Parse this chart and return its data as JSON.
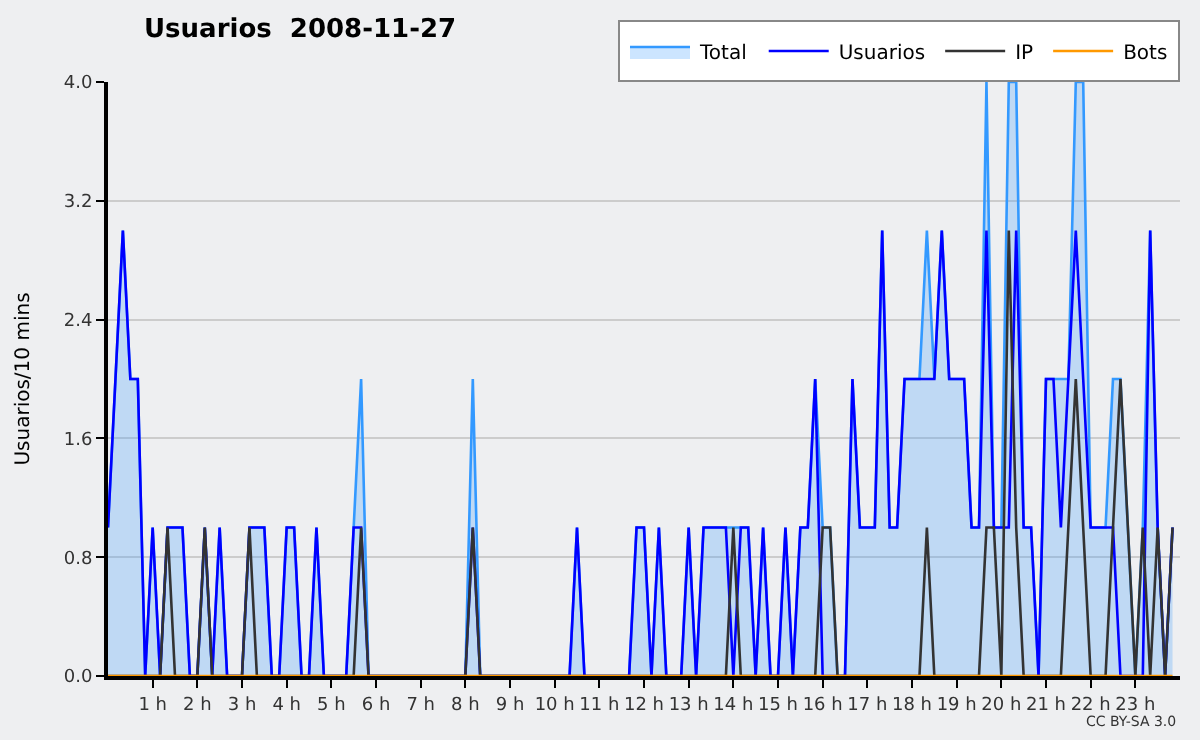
{
  "chart_data": {
    "type": "line",
    "title": "Usuarios  2008-11-27",
    "ylabel": "Usuarios/10 mins",
    "x": [
      0,
      0.167,
      0.333,
      0.5,
      0.667,
      0.833,
      1,
      1.167,
      1.333,
      1.5,
      1.667,
      1.833,
      2,
      2.167,
      2.333,
      2.5,
      2.667,
      2.833,
      3,
      3.167,
      3.333,
      3.5,
      3.667,
      3.833,
      4,
      4.167,
      4.333,
      4.5,
      4.667,
      4.833,
      5,
      5.167,
      5.333,
      5.5,
      5.667,
      5.833,
      6,
      6.167,
      6.333,
      6.5,
      6.667,
      6.833,
      7,
      7.167,
      7.333,
      7.5,
      7.667,
      7.833,
      8,
      8.167,
      8.333,
      8.5,
      8.667,
      8.833,
      9,
      9.167,
      9.333,
      9.5,
      9.667,
      9.833,
      10,
      10.167,
      10.333,
      10.5,
      10.667,
      10.833,
      11,
      11.167,
      11.333,
      11.5,
      11.667,
      11.833,
      12,
      12.167,
      12.333,
      12.5,
      12.667,
      12.833,
      13,
      13.167,
      13.333,
      13.5,
      13.667,
      13.833,
      14,
      14.167,
      14.333,
      14.5,
      14.667,
      14.833,
      15,
      15.167,
      15.333,
      15.5,
      15.667,
      15.833,
      16,
      16.167,
      16.333,
      16.5,
      16.667,
      16.833,
      17,
      17.167,
      17.333,
      17.5,
      17.667,
      17.833,
      18,
      18.167,
      18.333,
      18.5,
      18.667,
      18.833,
      19,
      19.167,
      19.333,
      19.5,
      19.667,
      19.833,
      20,
      20.167,
      20.333,
      20.5,
      20.667,
      20.833,
      21,
      21.167,
      21.333,
      21.5,
      21.667,
      21.833,
      22,
      22.167,
      22.333,
      22.5,
      22.667,
      22.833,
      23,
      23.167,
      23.333,
      23.5,
      23.667,
      23.833
    ],
    "series": [
      {
        "name": "Total",
        "type": "area",
        "color": "#3399ff",
        "values": [
          1,
          2,
          3,
          2,
          2,
          0,
          1,
          0,
          1,
          1,
          1,
          0,
          0,
          1,
          0,
          1,
          0,
          0,
          0,
          1,
          1,
          1,
          0,
          0,
          1,
          1,
          0,
          0,
          1,
          0,
          0,
          0,
          0,
          1,
          2,
          0,
          0,
          0,
          0,
          0,
          0,
          0,
          0,
          0,
          0,
          0,
          0,
          0,
          0,
          2,
          0,
          0,
          0,
          0,
          0,
          0,
          0,
          0,
          0,
          0,
          0,
          0,
          0,
          1,
          0,
          0,
          0,
          0,
          0,
          0,
          0,
          1,
          1,
          0,
          1,
          0,
          0,
          0,
          1,
          0,
          1,
          1,
          1,
          1,
          1,
          1,
          1,
          0,
          1,
          0,
          0,
          1,
          0,
          1,
          1,
          2,
          1,
          1,
          0,
          0,
          2,
          1,
          1,
          1,
          3,
          1,
          1,
          2,
          2,
          2,
          3,
          2,
          3,
          2,
          2,
          2,
          1,
          1,
          4,
          1,
          1,
          4,
          4,
          1,
          1,
          0,
          2,
          2,
          2,
          2,
          4,
          4,
          1,
          1,
          1,
          2,
          2,
          1,
          0,
          1,
          3,
          1,
          0,
          1
        ]
      },
      {
        "name": "Usuarios",
        "color": "#0000ff",
        "values": [
          1,
          2,
          3,
          2,
          2,
          0,
          1,
          0,
          1,
          1,
          1,
          0,
          0,
          1,
          0,
          1,
          0,
          0,
          0,
          1,
          1,
          1,
          0,
          0,
          1,
          1,
          0,
          0,
          1,
          0,
          0,
          0,
          0,
          1,
          1,
          0,
          0,
          0,
          0,
          0,
          0,
          0,
          0,
          0,
          0,
          0,
          0,
          0,
          0,
          1,
          0,
          0,
          0,
          0,
          0,
          0,
          0,
          0,
          0,
          0,
          0,
          0,
          0,
          1,
          0,
          0,
          0,
          0,
          0,
          0,
          0,
          1,
          1,
          0,
          1,
          0,
          0,
          0,
          1,
          0,
          1,
          1,
          1,
          1,
          0,
          1,
          1,
          0,
          1,
          0,
          0,
          1,
          0,
          1,
          1,
          2,
          0,
          0,
          0,
          0,
          2,
          1,
          1,
          1,
          3,
          1,
          1,
          2,
          2,
          2,
          2,
          2,
          3,
          2,
          2,
          2,
          1,
          1,
          3,
          1,
          1,
          1,
          3,
          1,
          1,
          0,
          2,
          2,
          1,
          2,
          3,
          2,
          1,
          1,
          1,
          1,
          0,
          0,
          0,
          0,
          3,
          1,
          0,
          1
        ]
      },
      {
        "name": "IP",
        "color": "#333333",
        "values": [
          0,
          0,
          0,
          0,
          0,
          0,
          0,
          0,
          1,
          0,
          0,
          0,
          0,
          1,
          0,
          0,
          0,
          0,
          0,
          1,
          0,
          0,
          0,
          0,
          0,
          0,
          0,
          0,
          0,
          0,
          0,
          0,
          0,
          0,
          1,
          0,
          0,
          0,
          0,
          0,
          0,
          0,
          0,
          0,
          0,
          0,
          0,
          0,
          0,
          1,
          0,
          0,
          0,
          0,
          0,
          0,
          0,
          0,
          0,
          0,
          0,
          0,
          0,
          0,
          0,
          0,
          0,
          0,
          0,
          0,
          0,
          0,
          0,
          0,
          0,
          0,
          0,
          0,
          0,
          0,
          0,
          0,
          0,
          0,
          1,
          0,
          0,
          0,
          0,
          0,
          0,
          0,
          0,
          0,
          0,
          0,
          1,
          1,
          0,
          0,
          0,
          0,
          0,
          0,
          0,
          0,
          0,
          0,
          0,
          0,
          1,
          0,
          0,
          0,
          0,
          0,
          0,
          0,
          1,
          1,
          0,
          3,
          1,
          0,
          0,
          0,
          0,
          0,
          0,
          1,
          2,
          1,
          0,
          0,
          0,
          1,
          2,
          1,
          0,
          1,
          0,
          1,
          0,
          1
        ]
      },
      {
        "name": "Bots",
        "color": "#ff9900",
        "values": [
          0,
          0,
          0,
          0,
          0,
          0,
          0,
          0,
          0,
          0,
          0,
          0,
          0,
          0,
          0,
          0,
          0,
          0,
          0,
          0,
          0,
          0,
          0,
          0,
          0,
          0,
          0,
          0,
          0,
          0,
          0,
          0,
          0,
          0,
          0,
          0,
          0,
          0,
          0,
          0,
          0,
          0,
          0,
          0,
          0,
          0,
          0,
          0,
          0,
          0,
          0,
          0,
          0,
          0,
          0,
          0,
          0,
          0,
          0,
          0,
          0,
          0,
          0,
          0,
          0,
          0,
          0,
          0,
          0,
          0,
          0,
          0,
          0,
          0,
          0,
          0,
          0,
          0,
          0,
          0,
          0,
          0,
          0,
          0,
          0,
          0,
          0,
          0,
          0,
          0,
          0,
          0,
          0,
          0,
          0,
          0,
          0,
          0,
          0,
          0,
          0,
          0,
          0,
          0,
          0,
          0,
          0,
          0,
          0,
          0,
          0,
          0,
          0,
          0,
          0,
          0,
          0,
          0,
          0,
          0,
          0,
          0,
          0,
          0,
          0,
          0,
          0,
          0,
          0,
          0,
          0,
          0,
          0,
          0,
          0,
          0,
          0,
          0,
          0,
          0,
          0,
          0,
          0,
          0
        ]
      }
    ],
    "xlim": [
      0,
      24
    ],
    "xticks": [
      {
        "value": 1,
        "label": "1 h"
      },
      {
        "value": 2,
        "label": "2 h"
      },
      {
        "value": 3,
        "label": "3 h"
      },
      {
        "value": 4,
        "label": "4 h"
      },
      {
        "value": 5,
        "label": "5 h"
      },
      {
        "value": 6,
        "label": "6 h"
      },
      {
        "value": 7,
        "label": "7 h"
      },
      {
        "value": 8,
        "label": "8 h"
      },
      {
        "value": 9,
        "label": "9 h"
      },
      {
        "value": 10,
        "label": "10 h"
      },
      {
        "value": 11,
        "label": "11 h"
      },
      {
        "value": 12,
        "label": "12 h"
      },
      {
        "value": 13,
        "label": "13 h"
      },
      {
        "value": 14,
        "label": "14 h"
      },
      {
        "value": 15,
        "label": "15 h"
      },
      {
        "value": 16,
        "label": "16 h"
      },
      {
        "value": 17,
        "label": "17 h"
      },
      {
        "value": 18,
        "label": "18 h"
      },
      {
        "value": 19,
        "label": "19 h"
      },
      {
        "value": 20,
        "label": "20 h"
      },
      {
        "value": 21,
        "label": "21 h"
      },
      {
        "value": 22,
        "label": "22 h"
      },
      {
        "value": 23,
        "label": "23 h"
      }
    ],
    "ylim": [
      0,
      4
    ],
    "yticks": [
      {
        "value": 0,
        "label": "0.0"
      },
      {
        "value": 0.8,
        "label": "0.8"
      },
      {
        "value": 1.6,
        "label": "1.6"
      },
      {
        "value": 2.4,
        "label": "2.4"
      },
      {
        "value": 3.2,
        "label": "3.2"
      },
      {
        "value": 4,
        "label": "4.0"
      }
    ],
    "grid": "y",
    "legend": "top right",
    "annotations": [
      "CC BY-SA 3.0"
    ]
  }
}
